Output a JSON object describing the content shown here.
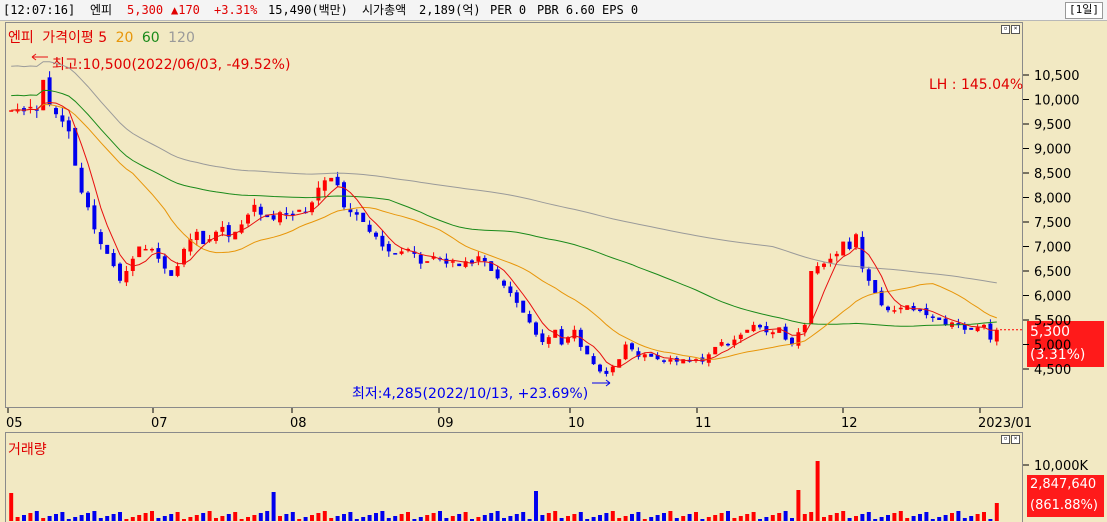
{
  "header": {
    "time": "[12:07:16]",
    "name": "엔피",
    "price": "5,300",
    "change": "▲170",
    "change_pct": "+3.31%",
    "trade_value": "15,490(백만)",
    "market_cap_label": "시가총액",
    "market_cap": "2,189(억)",
    "per": "PER 0",
    "pbr": "PBR 6.60",
    "eps": "EPS 0",
    "period": "[1일]"
  },
  "legend": {
    "name": "엔피",
    "ma_label": "가격이평",
    "ma5": "5",
    "ma20": "20",
    "ma60": "60",
    "ma120": "120"
  },
  "annotations": {
    "high": "최고:10,500(2022/06/03, -49.52%)",
    "low": "최저:4,285(2022/10/13, +23.69%)",
    "lh": "LH : 145.04%",
    "current_price": "5,300",
    "current_pct": "(3.31%)",
    "volume_label": "거래량",
    "current_volume": "2,847,640",
    "current_volume_pct": "(861.88%)",
    "volume_tick": "10,000K"
  },
  "colors": {
    "up": "#ff0000",
    "down": "#0000ee",
    "ma5": "#e81010",
    "ma20": "#e8960a",
    "ma60": "#1a8a1a",
    "ma120": "#9a9a9a",
    "background": "#f2e9c3"
  },
  "chart_data": {
    "type": "candlestick",
    "title": "엔피",
    "x_ticks": [
      "05",
      "07",
      "08",
      "09",
      "10",
      "11",
      "12",
      "2023/01"
    ],
    "y_ticks": [
      "10,500",
      "10,000",
      "9,500",
      "9,000",
      "8,500",
      "8,000",
      "7,500",
      "7,000",
      "6,500",
      "6,000",
      "5,500",
      "5,000",
      "4,500"
    ],
    "ylim": [
      4000,
      11000
    ],
    "close_series": [
      9780,
      9800,
      9760,
      9850,
      9780,
      10400,
      9900,
      9700,
      9550,
      9350,
      8650,
      8100,
      7800,
      7350,
      7050,
      6850,
      6600,
      6300,
      6500,
      6750,
      7000,
      6950,
      6950,
      6750,
      6550,
      6400,
      6600,
      6950,
      7150,
      7300,
      7050,
      7150,
      7300,
      7400,
      7200,
      7300,
      7450,
      7650,
      7850,
      7650,
      7600,
      7550,
      7700,
      7650,
      7650,
      7750,
      7700,
      7900,
      8200,
      8350,
      8400,
      8250,
      7800,
      7700,
      7650,
      7500,
      7300,
      7200,
      7000,
      6900,
      6850,
      6900,
      6950,
      6850,
      6650,
      6700,
      6800,
      6750,
      6650,
      6700,
      6600,
      6700,
      6650,
      6800,
      6700,
      6500,
      6350,
      6200,
      6050,
      5850,
      5650,
      5450,
      5200,
      5050,
      5150,
      5300,
      5000,
      5150,
      5300,
      4950,
      4800,
      4600,
      4450,
      4400,
      4550,
      4700,
      5000,
      4900,
      4750,
      4800,
      4750,
      4700,
      4650,
      4700,
      4650,
      4700,
      4650,
      4700,
      4650,
      4800,
      4950,
      5050,
      5000,
      5100,
      5200,
      5300,
      5400,
      5350,
      5250,
      5250,
      5350,
      5100,
      5000,
      5250,
      5400,
      6500,
      6600,
      6650,
      6750,
      6850,
      7100,
      6950,
      7250,
      6550,
      6300,
      6050,
      5800,
      5700,
      5700,
      5750,
      5800,
      5700,
      5700,
      5600,
      5550,
      5500,
      5400,
      5450,
      5400,
      5300,
      5300,
      5350,
      5400,
      5100,
      5300
    ],
    "high": {
      "value": 10500,
      "date": "2022/06/03"
    },
    "low": {
      "value": 4285,
      "date": "2022/10/13"
    },
    "volume": {
      "last": 2847640,
      "unit_tick": "10,000K"
    }
  }
}
